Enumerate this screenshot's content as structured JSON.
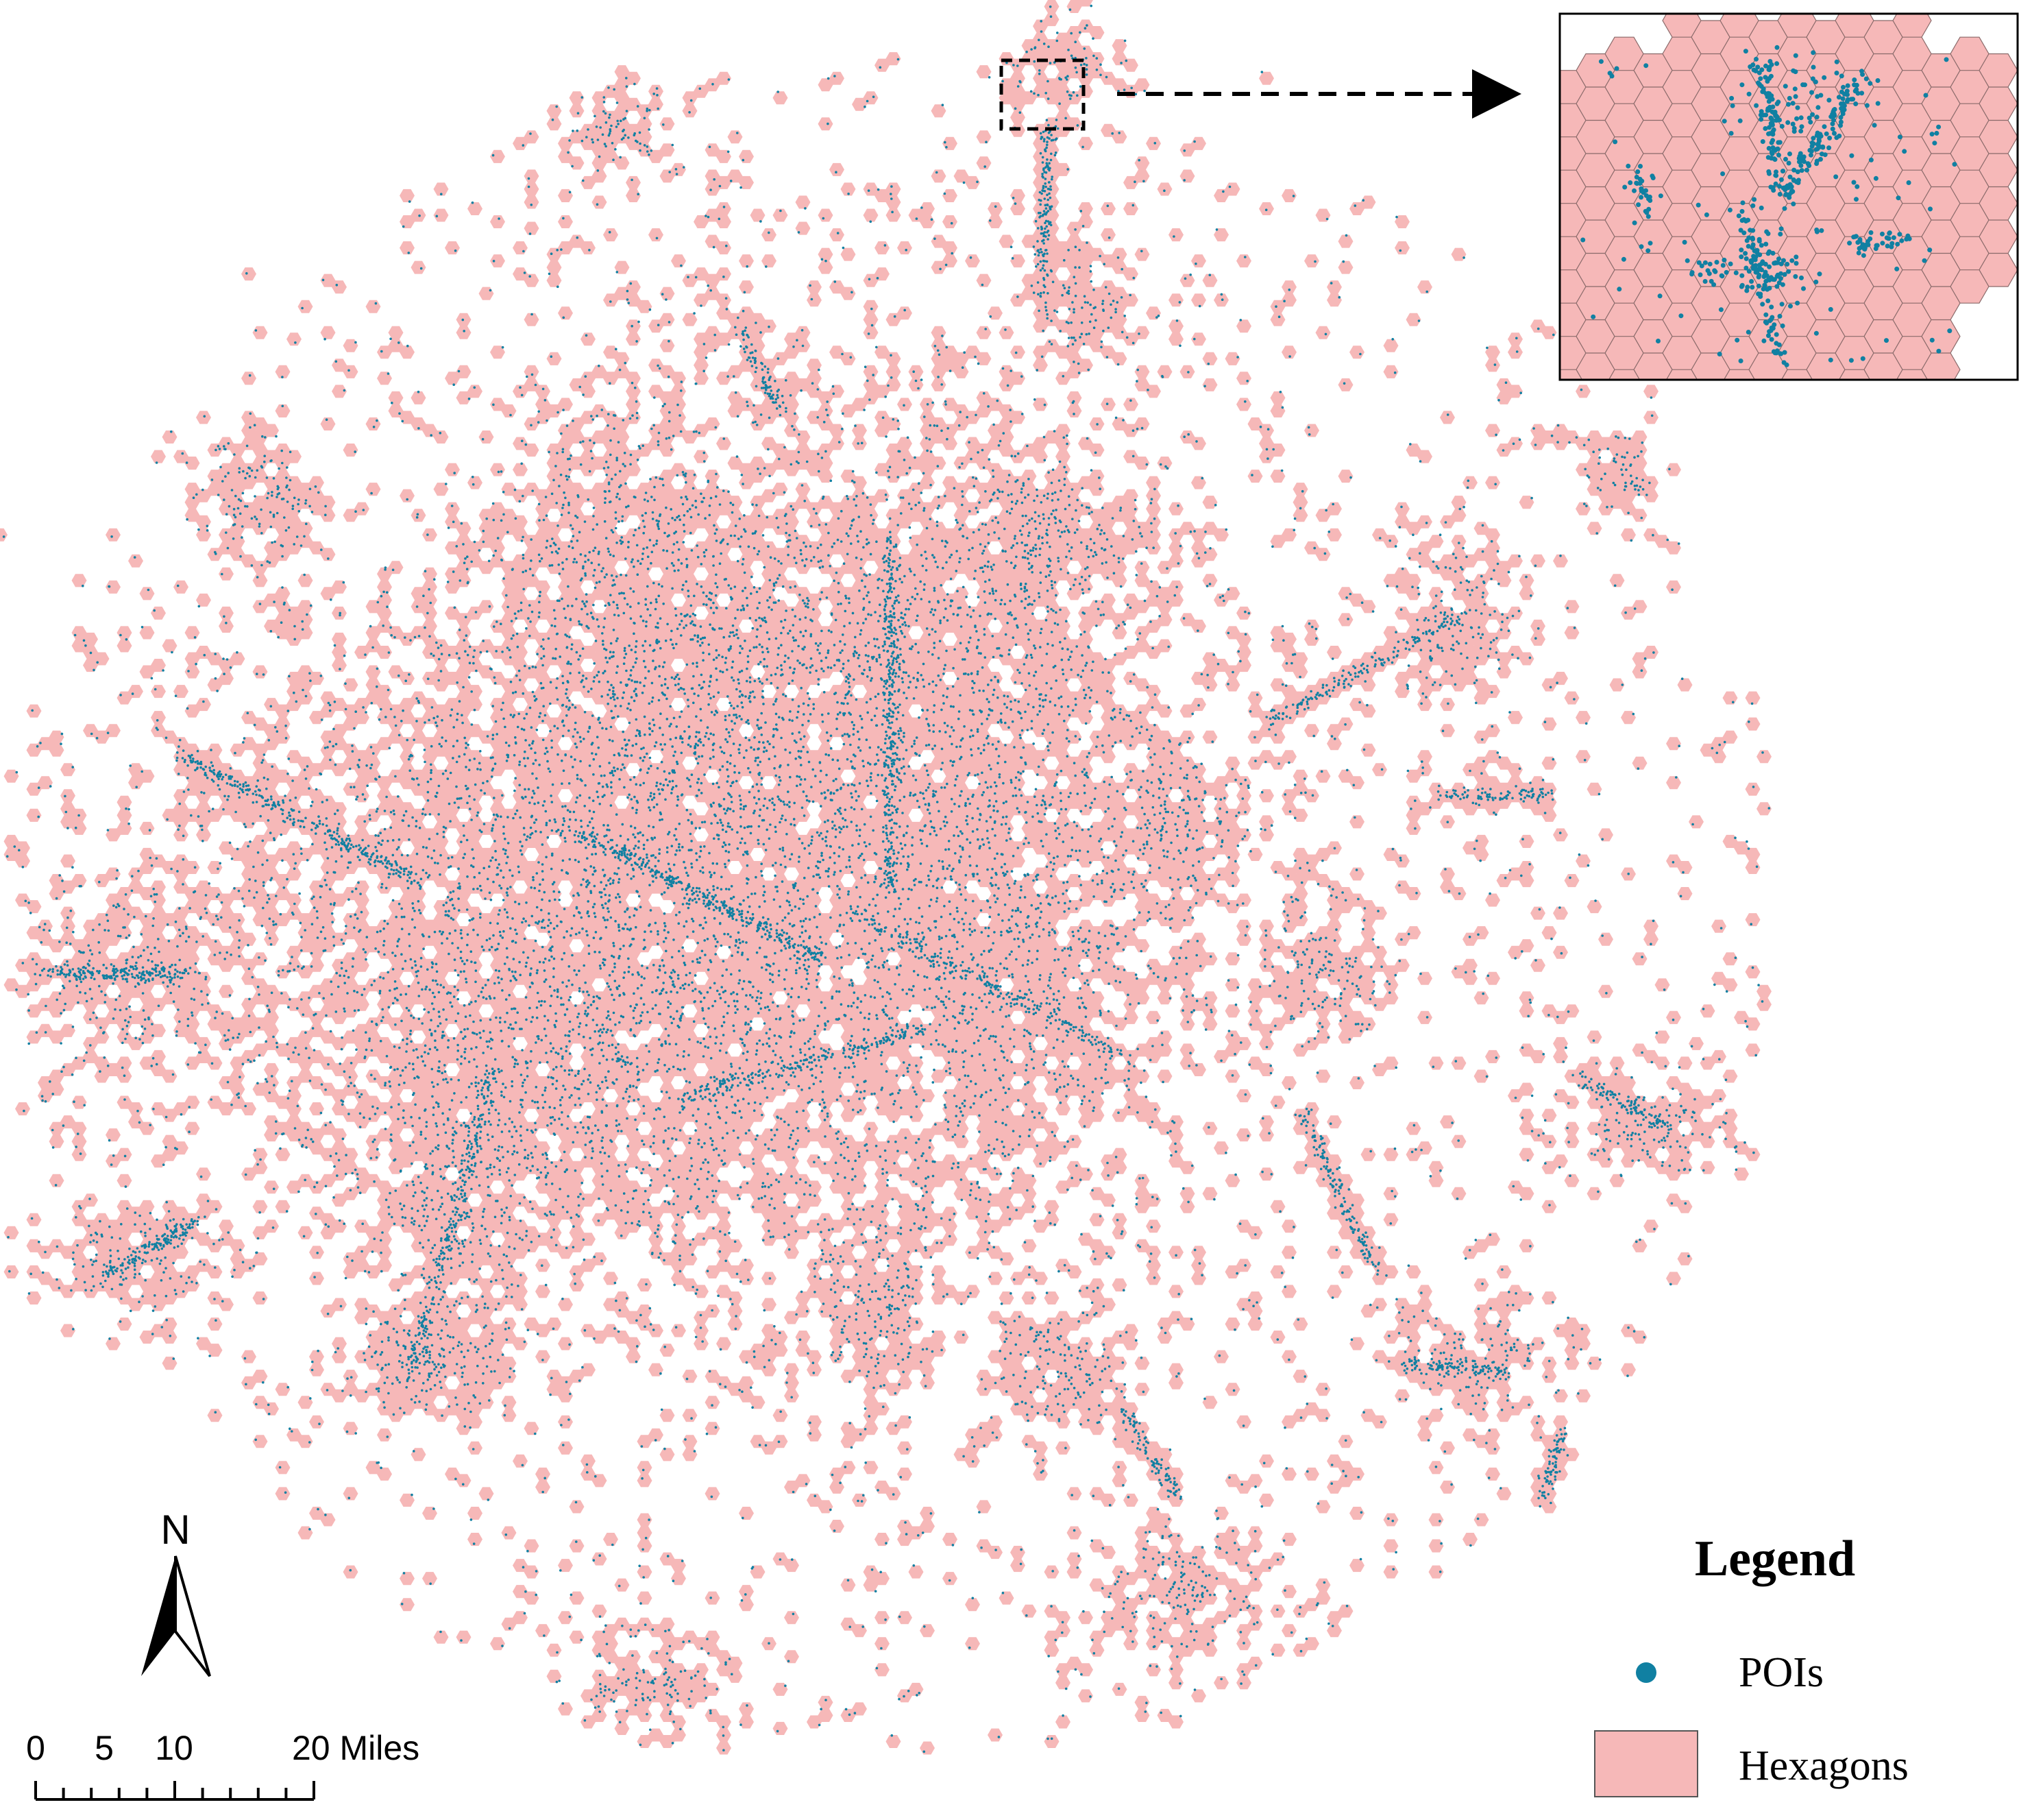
{
  "colors": {
    "hexagon_fill": "#f6b8b8",
    "hexagon_stroke": "#8a6a6a",
    "poi": "#1080a2",
    "background": "#ffffff",
    "outline": "#000000"
  },
  "north_arrow": {
    "label": "N"
  },
  "scale_bar": {
    "ticks": [
      "0",
      "5",
      "10",
      "20 Miles"
    ]
  },
  "legend": {
    "title": "Legend",
    "items": [
      {
        "label": "POIs",
        "symbol": "dot"
      },
      {
        "label": "Hexagons",
        "symbol": "square"
      }
    ]
  },
  "inset": {
    "description_icon": "zoom-inset",
    "callout": "dashed-arrow"
  }
}
